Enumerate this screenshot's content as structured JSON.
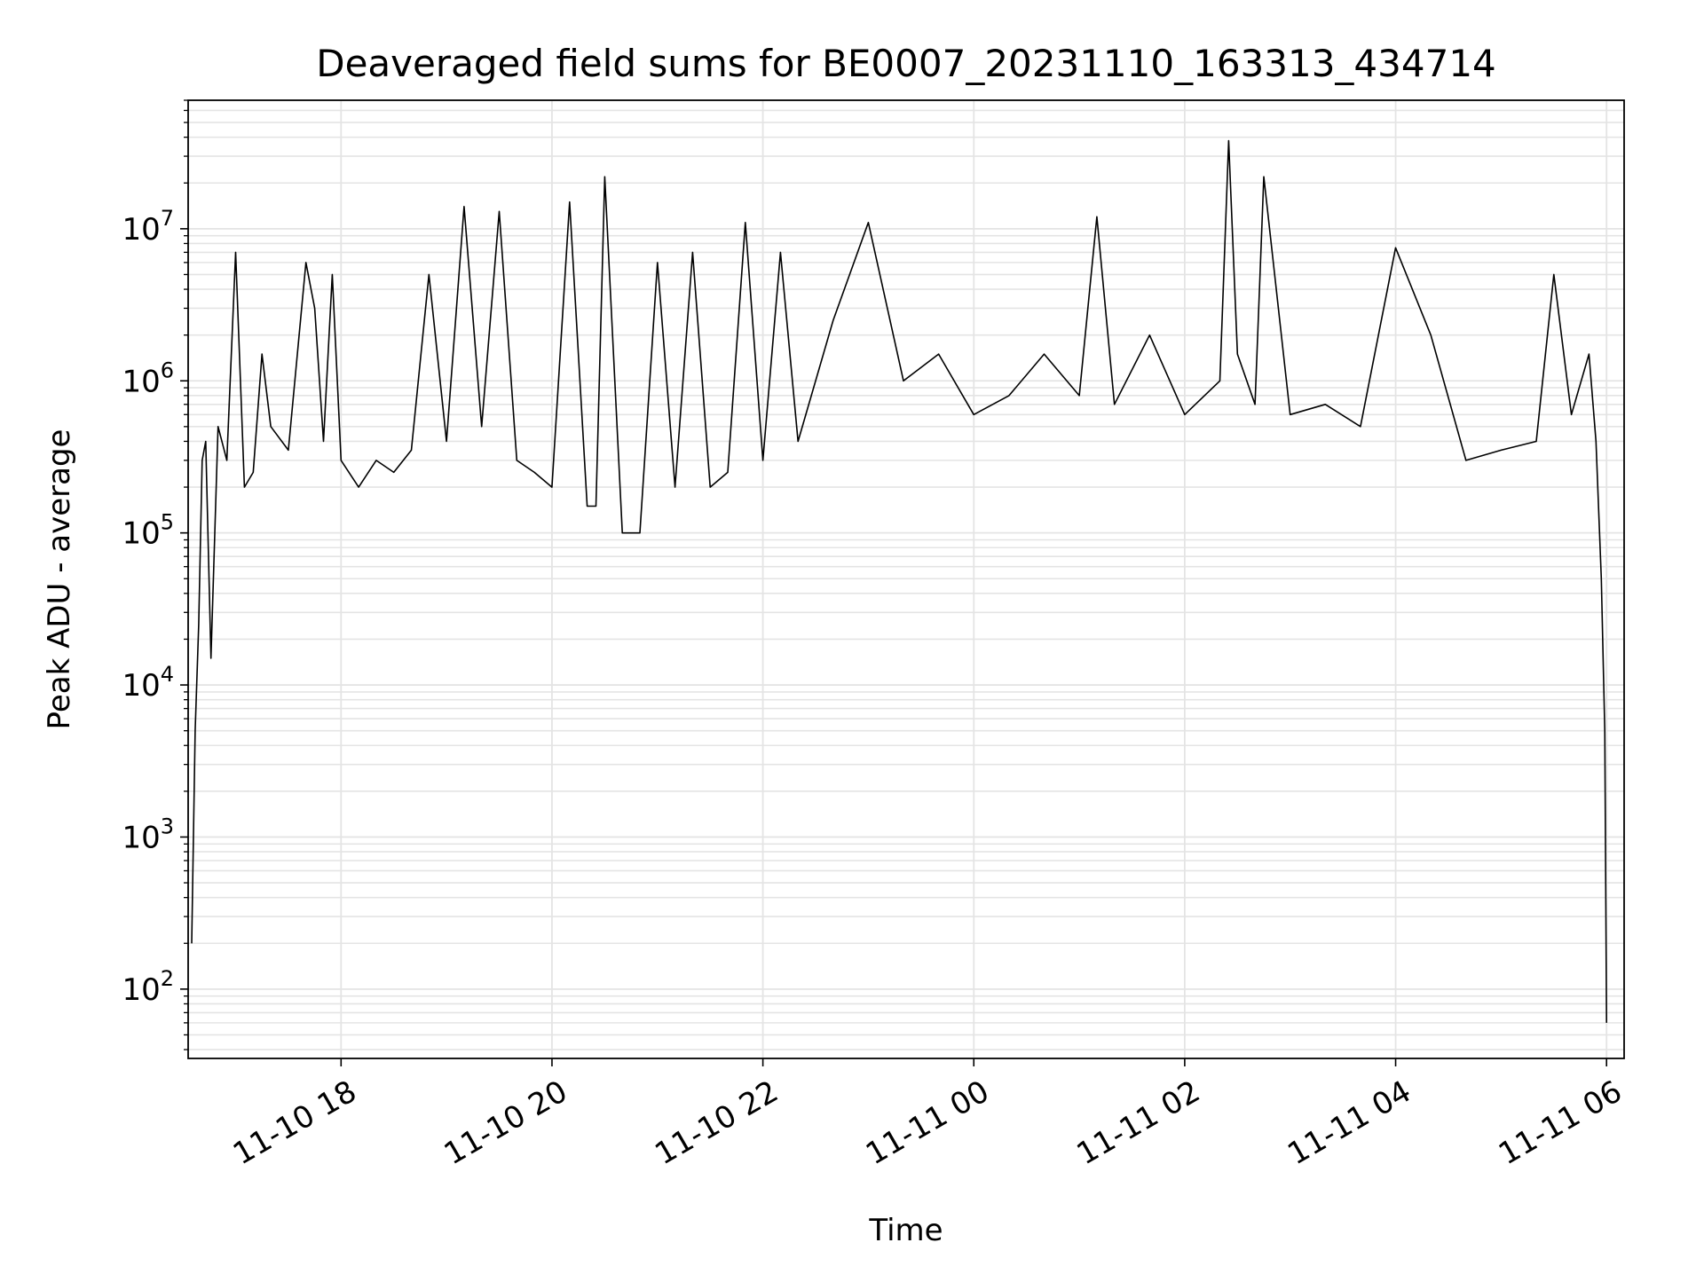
{
  "chart_data": {
    "type": "line",
    "title": "Deaveraged field sums for BE0007_20231110_163313_434714",
    "xlabel": "Time",
    "ylabel": "Peak ADU - average",
    "yscale": "log",
    "ylim": [
      35,
      70000000
    ],
    "xlim": [
      "2023-11-10 16:33",
      "2023-11-11 06:10"
    ],
    "grid": true,
    "grid_minor": true,
    "line_color": "#000000",
    "x_ticks": [
      "2023-11-10 18:00",
      "2023-11-10 20:00",
      "2023-11-10 22:00",
      "2023-11-11 00:00",
      "2023-11-11 02:00",
      "2023-11-11 04:00",
      "2023-11-11 06:00"
    ],
    "x_tick_labels": [
      "11-10 18",
      "11-10 20",
      "11-10 22",
      "11-11 00",
      "11-11 02",
      "11-11 04",
      "11-11 06"
    ],
    "y_ticks": [
      100,
      1000,
      10000,
      100000,
      1000000,
      10000000
    ],
    "y_tick_labels": [
      {
        "base": "10",
        "exp": "2"
      },
      {
        "base": "10",
        "exp": "3"
      },
      {
        "base": "10",
        "exp": "4"
      },
      {
        "base": "10",
        "exp": "5"
      },
      {
        "base": "10",
        "exp": "6"
      },
      {
        "base": "10",
        "exp": "7"
      }
    ],
    "series": [
      {
        "x": [
          "2023-11-10 16:35",
          "2023-11-10 16:37",
          "2023-11-10 16:39",
          "2023-11-10 16:41",
          "2023-11-10 16:43",
          "2023-11-10 16:46",
          "2023-11-10 16:50",
          "2023-11-10 16:55",
          "2023-11-10 17:00",
          "2023-11-10 17:05",
          "2023-11-10 17:10",
          "2023-11-10 17:15",
          "2023-11-10 17:20",
          "2023-11-10 17:30",
          "2023-11-10 17:40",
          "2023-11-10 17:45",
          "2023-11-10 17:50",
          "2023-11-10 17:55",
          "2023-11-10 18:00",
          "2023-11-10 18:10",
          "2023-11-10 18:20",
          "2023-11-10 18:30",
          "2023-11-10 18:40",
          "2023-11-10 18:50",
          "2023-11-10 19:00",
          "2023-11-10 19:10",
          "2023-11-10 19:20",
          "2023-11-10 19:30",
          "2023-11-10 19:40",
          "2023-11-10 19:50",
          "2023-11-10 20:00",
          "2023-11-10 20:10",
          "2023-11-10 20:20",
          "2023-11-10 20:25",
          "2023-11-10 20:30",
          "2023-11-10 20:40",
          "2023-11-10 20:50",
          "2023-11-10 21:00",
          "2023-11-10 21:10",
          "2023-11-10 21:20",
          "2023-11-10 21:30",
          "2023-11-10 21:40",
          "2023-11-10 21:50",
          "2023-11-10 22:00",
          "2023-11-10 22:10",
          "2023-11-10 22:20",
          "2023-11-10 22:40",
          "2023-11-10 23:00",
          "2023-11-10 23:20",
          "2023-11-10 23:40",
          "2023-11-11 00:00",
          "2023-11-11 00:20",
          "2023-11-11 00:40",
          "2023-11-11 01:00",
          "2023-11-11 01:10",
          "2023-11-11 01:20",
          "2023-11-11 01:40",
          "2023-11-11 02:00",
          "2023-11-11 02:20",
          "2023-11-11 02:25",
          "2023-11-11 02:30",
          "2023-11-11 02:40",
          "2023-11-11 02:45",
          "2023-11-11 03:00",
          "2023-11-11 03:20",
          "2023-11-11 03:40",
          "2023-11-11 04:00",
          "2023-11-11 04:20",
          "2023-11-11 04:40",
          "2023-11-11 05:00",
          "2023-11-11 05:20",
          "2023-11-11 05:30",
          "2023-11-11 05:40",
          "2023-11-11 05:50",
          "2023-11-11 05:54",
          "2023-11-11 05:57",
          "2023-11-11 05:59",
          "2023-11-11 06:00"
        ],
        "y": [
          200,
          5000,
          25000,
          300000,
          400000,
          15000,
          500000,
          300000,
          7000000,
          200000,
          250000,
          1500000,
          500000,
          350000,
          6000000,
          3000000,
          400000,
          5000000,
          300000,
          200000,
          300000,
          250000,
          350000,
          5000000,
          400000,
          14000000,
          500000,
          13000000,
          300000,
          250000,
          200000,
          15000000,
          150000,
          150000,
          22000000,
          100000,
          100000,
          6000000,
          200000,
          7000000,
          200000,
          250000,
          11000000,
          300000,
          7000000,
          400000,
          2500000,
          11000000,
          1000000,
          1500000,
          600000,
          800000,
          1500000,
          800000,
          12000000,
          700000,
          2000000,
          600000,
          1000000,
          38000000,
          1500000,
          700000,
          22000000,
          600000,
          700000,
          500000,
          7500000,
          2000000,
          300000,
          350000,
          400000,
          5000000,
          600000,
          1500000,
          400000,
          50000,
          5000,
          60
        ]
      }
    ]
  }
}
